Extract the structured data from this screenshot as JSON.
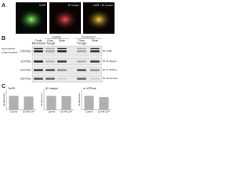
{
  "panel_a": {
    "label": "A",
    "images": [
      {
        "label": "CaSR"
      },
      {
        "label": "β1 Integrin"
      },
      {
        "label": "CaSR + β1 Integrin"
      }
    ]
  },
  "panel_b": {
    "label": "B",
    "groups": [
      "Control",
      "10 mM Ca²⁺"
    ],
    "lanes": [
      "Crude Microsome",
      "Flow Through",
      "Elute",
      "Flow Through",
      "Elute"
    ],
    "band_labels": [
      "Glycosylated",
      "Unglycosylated"
    ],
    "blots": [
      {
        "marker": "130 KDa",
        "antibody": "IB: CaSR"
      },
      {
        "marker": "110 KDa",
        "antibody": "IB: β1 Integrin"
      },
      {
        "marker": "110 KDa",
        "antibody": "IB: α1-ATPase"
      },
      {
        "marker": "250 KDa",
        "antibody": "IB: IP3 Receptor"
      }
    ]
  },
  "panel_c": {
    "label": "C",
    "y_label": "% Expression",
    "ylim": [
      0,
      150
    ],
    "charts": [
      {
        "type": "bar",
        "title": "CaSR",
        "categories": [
          "Control",
          "10 mM Ca²⁺"
        ],
        "values": [
          100,
          95
        ],
        "color": "#b0b0b0"
      },
      {
        "type": "bar",
        "title": "β1 Integrin",
        "categories": [
          "Control",
          "10 mM Ca²⁺"
        ],
        "values": [
          100,
          98
        ],
        "color": "#b0b0b0"
      },
      {
        "type": "bar",
        "title": "α1-ATPase",
        "categories": [
          "Control",
          "10 mM Ca²⁺"
        ],
        "values": [
          100,
          90
        ],
        "color": "#b0b0b0"
      }
    ]
  }
}
